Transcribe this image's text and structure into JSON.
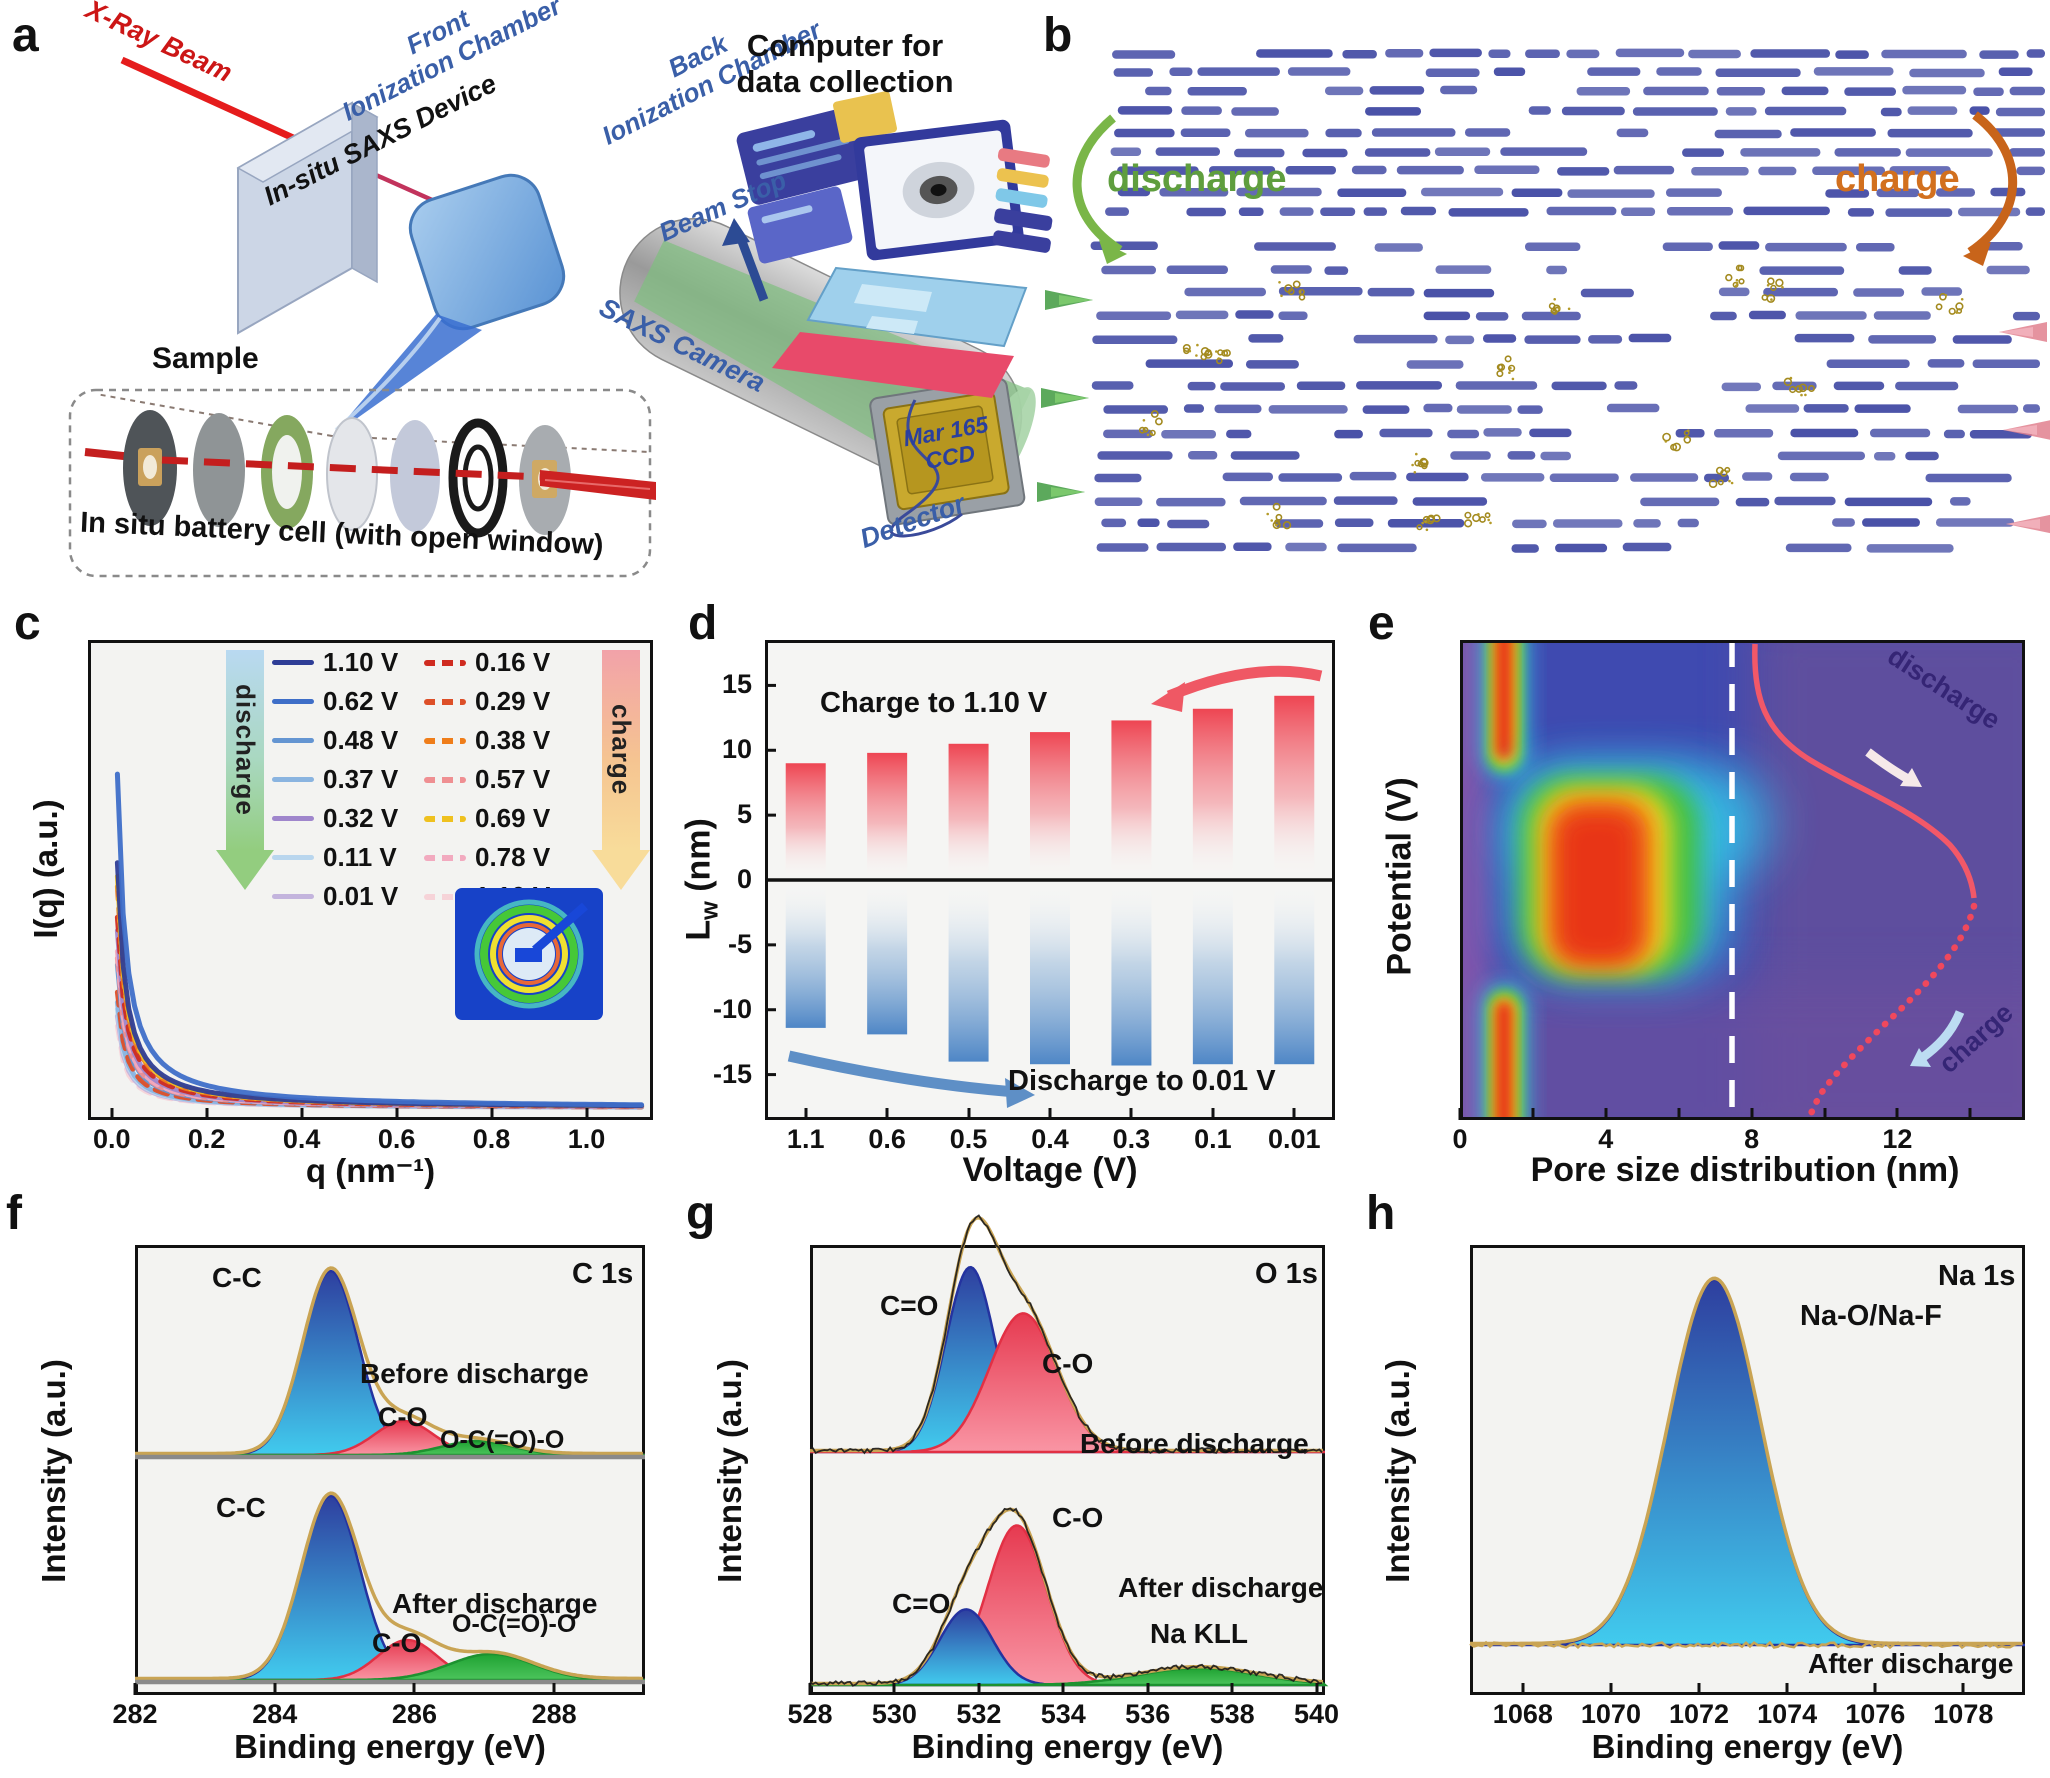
{
  "panel_a": {
    "letter": "a",
    "xray_beam": "X-Ray Beam",
    "front_chamber": "Front\nIonization Chamber",
    "device": "In-situ SAXS Device",
    "back_chamber": "Back\nIonization Chamber",
    "camera": "SAXS Camera",
    "beam_stop": "Beam Stop",
    "computer": "Computer for\ndata collection",
    "detector_face": "Mar 165\nCCD",
    "detector": "Detector",
    "sample": "Sample",
    "cell_caption": "In situ battery cell (with open window)"
  },
  "panel_b": {
    "letter": "b",
    "discharge_label": "discharge",
    "charge_label": "charge",
    "discharge_color": "#5f9e3e",
    "charge_color": "#d2701e"
  },
  "panel_c": {
    "letter": "c"
  },
  "panel_d": {
    "letter": "d"
  },
  "panel_e": {
    "letter": "e"
  },
  "panel_f": {
    "letter": "f"
  },
  "panel_g": {
    "letter": "g"
  },
  "panel_h": {
    "letter": "h"
  },
  "chart_data": [
    {
      "panel": "c",
      "type": "line",
      "xlabel": "q (nm⁻¹)",
      "ylabel": "I(q) (a.u.)",
      "xlim": [
        -0.05,
        1.14
      ],
      "xticks": [
        0.0,
        0.2,
        0.4,
        0.6,
        0.8,
        1.0
      ],
      "xtick_labels": [
        "0.0",
        "0.2",
        "0.4",
        "0.6",
        "0.8",
        "1.0"
      ],
      "legend_discharge": "discharge",
      "legend_charge": "charge",
      "series": [
        {
          "name": "1.10 V",
          "group": "discharge",
          "style": "solid",
          "color": "#2e3d96",
          "relative_intensity": 0.72
        },
        {
          "name": "0.62 V",
          "group": "discharge",
          "style": "solid",
          "color": "#3e6ec8",
          "relative_intensity": 0.98
        },
        {
          "name": "0.48 V",
          "group": "discharge",
          "style": "solid",
          "color": "#6495d2",
          "relative_intensity": 0.42
        },
        {
          "name": "0.37 V",
          "group": "discharge",
          "style": "solid",
          "color": "#8ab4e0",
          "relative_intensity": 0.31
        },
        {
          "name": "0.32 V",
          "group": "discharge",
          "style": "solid",
          "color": "#9f86cc",
          "relative_intensity": 0.52
        },
        {
          "name": "0.11 V",
          "group": "discharge",
          "style": "solid",
          "color": "#b9d6ee",
          "relative_intensity": 0.29
        },
        {
          "name": "0.01 V",
          "group": "discharge",
          "style": "solid",
          "color": "#c3b4dd",
          "relative_intensity": 0.27
        },
        {
          "name": "0.16 V",
          "group": "charge",
          "style": "dashed",
          "color": "#cf2b20",
          "relative_intensity": 0.56
        },
        {
          "name": "0.29 V",
          "group": "charge",
          "style": "dashed",
          "color": "#dd4f28",
          "relative_intensity": 0.34
        },
        {
          "name": "0.38 V",
          "group": "charge",
          "style": "dashed",
          "color": "#ef7d1a",
          "relative_intensity": 0.65
        },
        {
          "name": "0.57 V",
          "group": "charge",
          "style": "dashed",
          "color": "#ef8f92",
          "relative_intensity": 0.44
        },
        {
          "name": "0.69 V",
          "group": "charge",
          "style": "dashed",
          "color": "#efc11f",
          "relative_intensity": 0.68
        },
        {
          "name": "0.78 V",
          "group": "charge",
          "style": "dashed",
          "color": "#f2aabf",
          "relative_intensity": 0.46
        },
        {
          "name": "1.10 V",
          "group": "charge",
          "style": "dashed",
          "color": "#f6d3d8",
          "relative_intensity": 0.24
        }
      ]
    },
    {
      "panel": "d",
      "type": "bar",
      "xlabel": "Voltage (V)",
      "ylabel_main": "L",
      "ylabel_sub": "w",
      "ylabel_rest": " (nm)",
      "categories": [
        "1.1",
        "0.6",
        "0.5",
        "0.4",
        "0.3",
        "0.1",
        "0.01"
      ],
      "ylim": [
        -18.5,
        18.5
      ],
      "yticks": [
        15,
        10,
        5,
        0,
        -5,
        -10,
        -15
      ],
      "series": [
        {
          "name": "Charge to 1.10 V",
          "color": "#ee4552",
          "values": [
            9.0,
            9.8,
            10.5,
            11.4,
            12.3,
            13.2,
            14.2
          ]
        },
        {
          "name": "Discharge to 0.01 V",
          "color": "#5b8fc8",
          "values": [
            -11.4,
            -11.9,
            -14.0,
            -14.2,
            -14.3,
            -14.2,
            -14.2
          ]
        }
      ],
      "annotation_charge": "Charge to 1.10 V",
      "annotation_discharge": "Discharge to 0.01 V"
    },
    {
      "panel": "e",
      "type": "heatmap",
      "xlabel": "Pore size distribution (nm)",
      "ylabel": "Potential (V)",
      "xlim": [
        0,
        15.5
      ],
      "xticks": [
        0,
        2,
        4,
        6,
        8,
        10,
        12,
        14
      ],
      "xtick_labels": [
        "0",
        null,
        "4",
        null,
        "8",
        null,
        "12",
        null
      ],
      "annotation_discharge": "discharge",
      "annotation_charge": "charge",
      "features": {
        "micropore_band_center_nm": 1.2,
        "mesopore_blob_range_nm": [
          2,
          5.5
        ],
        "dashed_guide_nm": 7.5
      }
    },
    {
      "panel": "f",
      "type": "line",
      "title": "C 1s",
      "xlabel": "Binding energy (eV)",
      "ylabel": "Intensity (a.u.)",
      "xlim": [
        282,
        289.3
      ],
      "xticks": [
        282,
        284,
        286,
        288
      ],
      "xtick_labels": [
        "282",
        "284",
        "286",
        "288"
      ],
      "spectra": [
        {
          "name": "Before discharge",
          "peaks": [
            {
              "label": "C-C",
              "center": 284.8,
              "sigma": 0.4,
              "height": 0.92,
              "color": "blue"
            },
            {
              "label": "C-O",
              "center": 285.85,
              "sigma": 0.42,
              "height": 0.17,
              "color": "red"
            },
            {
              "label": "O-C(=O)-O",
              "center": 286.9,
              "sigma": 0.5,
              "height": 0.07,
              "color": "green"
            }
          ]
        },
        {
          "name": "After discharge",
          "peaks": [
            {
              "label": "C-C",
              "center": 284.8,
              "sigma": 0.42,
              "height": 0.92,
              "color": "blue"
            },
            {
              "label": "C-O",
              "center": 285.9,
              "sigma": 0.42,
              "height": 0.2,
              "color": "red"
            },
            {
              "label": "O-C(=O)-O",
              "center": 287.1,
              "sigma": 0.6,
              "height": 0.13,
              "color": "green"
            }
          ]
        }
      ]
    },
    {
      "panel": "g",
      "type": "line",
      "title": "O 1s",
      "xlabel": "Binding energy (eV)",
      "ylabel": "Intensity (a.u.)",
      "xlim": [
        528,
        540.2
      ],
      "xticks": [
        528,
        530,
        532,
        534,
        536,
        538,
        540
      ],
      "xtick_labels": [
        "528",
        "530",
        "532",
        "534",
        "536",
        "538",
        "540"
      ],
      "spectra": [
        {
          "name": "Before discharge",
          "peaks": [
            {
              "label": "C=O",
              "center": 531.8,
              "sigma": 0.58,
              "height": 0.88,
              "color": "blue"
            },
            {
              "label": "C-O",
              "center": 533.05,
              "sigma": 0.8,
              "height": 0.66,
              "color": "red"
            }
          ]
        },
        {
          "name": "After discharge",
          "peaks": [
            {
              "label": "C=O",
              "center": 531.7,
              "sigma": 0.62,
              "height": 0.36,
              "color": "blue"
            },
            {
              "label": "C-O",
              "center": 532.9,
              "sigma": 0.7,
              "height": 0.76,
              "color": "red"
            },
            {
              "label": "Na KLL",
              "center": 537.2,
              "sigma": 1.4,
              "height": 0.08,
              "color": "green"
            }
          ]
        }
      ]
    },
    {
      "panel": "h",
      "type": "line",
      "title": "Na 1s",
      "xlabel": "Binding energy (eV)",
      "ylabel": "Intensity (a.u.)",
      "note": "After discharge",
      "xlim": [
        1066.8,
        1079.4
      ],
      "xticks": [
        1068,
        1070,
        1072,
        1074,
        1076,
        1078
      ],
      "xtick_labels": [
        "1068",
        "1070",
        "1072",
        "1074",
        "1076",
        "1078"
      ],
      "spectra": [
        {
          "name": "After discharge",
          "peaks": [
            {
              "label": "Na-O/Na-F",
              "center": 1072.35,
              "sigma": 1.05,
              "height": 0.88,
              "color": "blue"
            }
          ]
        }
      ]
    }
  ]
}
